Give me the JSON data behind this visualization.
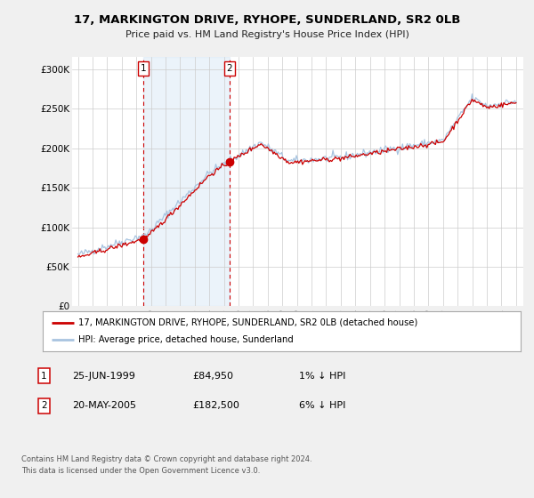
{
  "title": "17, MARKINGTON DRIVE, RYHOPE, SUNDERLAND, SR2 0LB",
  "subtitle": "Price paid vs. HM Land Registry's House Price Index (HPI)",
  "ylabel_ticks": [
    "£0",
    "£50K",
    "£100K",
    "£150K",
    "£200K",
    "£250K",
    "£300K"
  ],
  "ytick_values": [
    0,
    50000,
    100000,
    150000,
    200000,
    250000,
    300000
  ],
  "ylim": [
    0,
    315000
  ],
  "legend_entry1": "17, MARKINGTON DRIVE, RYHOPE, SUNDERLAND, SR2 0LB (detached house)",
  "legend_entry2": "HPI: Average price, detached house, Sunderland",
  "transaction1_date": "25-JUN-1999",
  "transaction1_price": "£84,950",
  "transaction1_hpi": "1% ↓ HPI",
  "transaction2_date": "20-MAY-2005",
  "transaction2_price": "£182,500",
  "transaction2_hpi": "6% ↓ HPI",
  "footer": "Contains HM Land Registry data © Crown copyright and database right 2024.\nThis data is licensed under the Open Government Licence v3.0.",
  "hpi_color": "#a8c4e0",
  "price_color": "#cc0000",
  "marker_color": "#cc0000",
  "vline_color": "#cc0000",
  "shade_color": "#c8dff2",
  "bg_color": "#f0f0f0",
  "plot_bg": "#ffffff",
  "price_dates": [
    1999.48,
    2005.38
  ],
  "price_vals": [
    84950,
    182500
  ]
}
